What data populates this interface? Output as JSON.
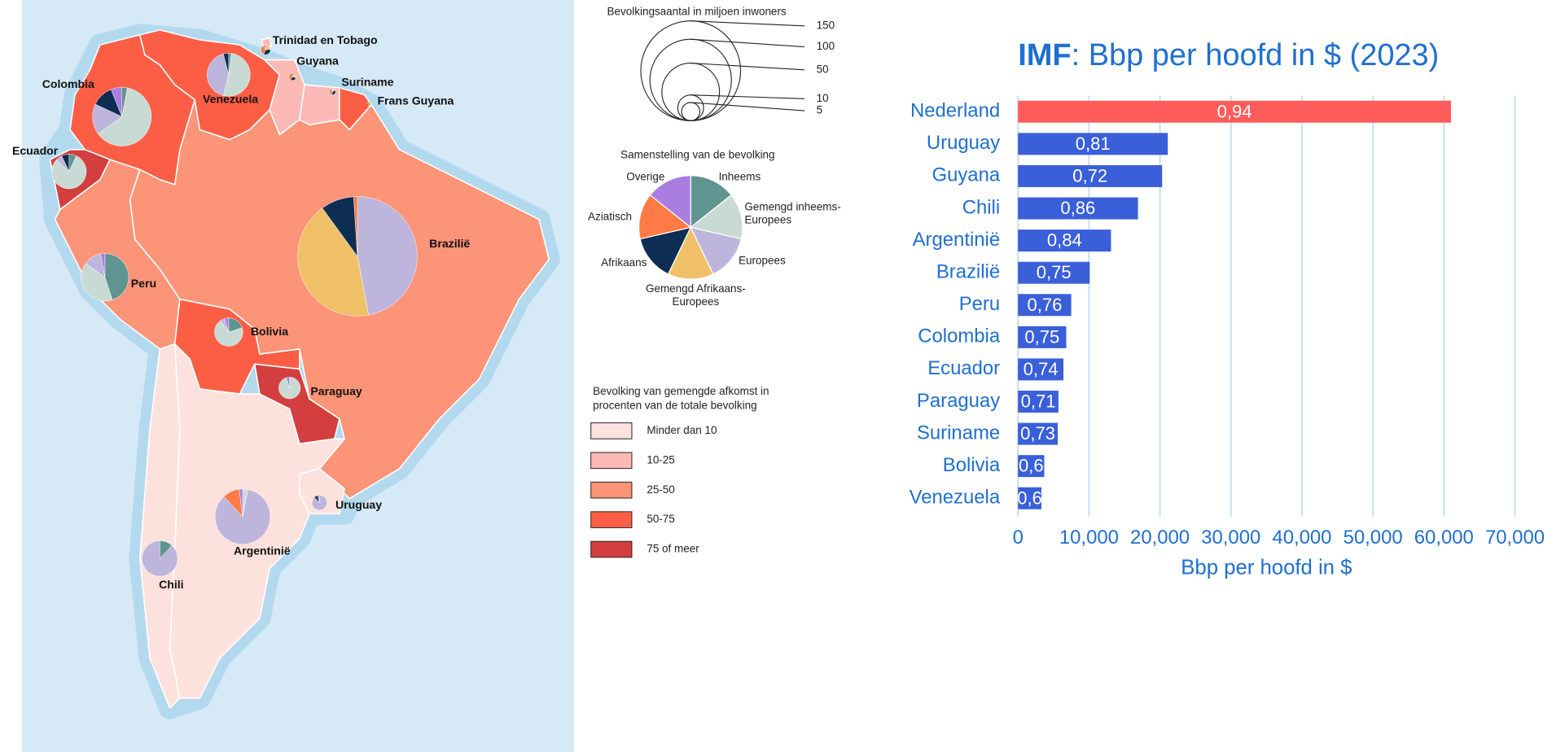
{
  "map": {
    "size_legend": {
      "title": "Bevolkingsaantal in miljoen inwoners",
      "values": [
        150,
        100,
        50,
        10,
        5
      ]
    },
    "composition_legend": {
      "title": "Samenstelling van de bevolking",
      "categories": [
        {
          "lines": [
            "Inheems"
          ],
          "color": "#5f9490"
        },
        {
          "lines": [
            "Gemengd inheems-",
            "Europees"
          ],
          "color": "#c9dad5"
        },
        {
          "lines": [
            "Europees"
          ],
          "color": "#bdb5dc"
        },
        {
          "lines": [
            "Gemengd Afrikaans-",
            "Europees"
          ],
          "color": "#f0c069"
        },
        {
          "lines": [
            "Afrikaans"
          ],
          "color": "#0d2d52"
        },
        {
          "lines": [
            "Aziatisch"
          ],
          "color": "#ff7a45"
        },
        {
          "lines": [
            "Overige"
          ],
          "color": "#a97ee0"
        }
      ]
    },
    "class_legend": {
      "title": [
        "Bevolking van gemengde afkomst in",
        "procenten van de totale bevolking"
      ],
      "classes": [
        {
          "label": "Minder dan 10",
          "color": "#fde1dd"
        },
        {
          "label": "10-25",
          "color": "#fcb9b5"
        },
        {
          "label": "25-50",
          "color": "#fc9478"
        },
        {
          "label": "50-75",
          "color": "#fc5e45"
        },
        {
          "label": "75 of meer",
          "color": "#d33e3e"
        }
      ]
    },
    "countries": [
      {
        "name": "Brazilië",
        "population": 215,
        "class": 2,
        "shares": [
          0,
          0,
          47,
          43,
          9,
          1,
          0
        ]
      },
      {
        "name": "Colombia",
        "population": 52,
        "class": 3,
        "shares": [
          3,
          62,
          17,
          0,
          12,
          0,
          6
        ]
      },
      {
        "name": "Venezuela",
        "population": 28,
        "class": 3,
        "shares": [
          2,
          52,
          42,
          0,
          4,
          0,
          0
        ]
      },
      {
        "name": "Peru",
        "population": 34,
        "class": 2,
        "shares": [
          45,
          40,
          12,
          0,
          0,
          0,
          3
        ]
      },
      {
        "name": "Ecuador",
        "population": 18,
        "class": 4,
        "shares": [
          7,
          80,
          6,
          0,
          7,
          0,
          0
        ]
      },
      {
        "name": "Bolivia",
        "population": 12,
        "class": 3,
        "shares": [
          20,
          70,
          5,
          0,
          0,
          0,
          5
        ]
      },
      {
        "name": "Paraguay",
        "population": 7,
        "class": 4,
        "shares": [
          0,
          95,
          0,
          0,
          0,
          0,
          5
        ]
      },
      {
        "name": "Argentinië",
        "population": 46,
        "class": 0,
        "shares": [
          0,
          3,
          85,
          0,
          0,
          10,
          2
        ]
      },
      {
        "name": "Chili",
        "population": 19,
        "class": 0,
        "shares": [
          12,
          0,
          88,
          0,
          0,
          0,
          0
        ]
      },
      {
        "name": "Uruguay",
        "population": 3.4,
        "class": 0,
        "shares": [
          0,
          0,
          88,
          0,
          8,
          0,
          4
        ]
      },
      {
        "name": "Guyana",
        "population": 0.8,
        "class": 1,
        "shares": [
          10,
          0,
          0,
          20,
          30,
          40,
          0
        ]
      },
      {
        "name": "Suriname",
        "population": 0.6,
        "class": 1,
        "shares": [
          4,
          0,
          0,
          13,
          37,
          37,
          9
        ]
      },
      {
        "name": "Trinidad en Tobago",
        "population": 1.4,
        "class": 1,
        "shares": [
          0,
          0,
          0,
          23,
          34,
          35,
          8
        ]
      },
      {
        "name": "Frans Guyana",
        "population": 0.3,
        "class": 3,
        "shares": [
          0,
          0,
          0,
          60,
          20,
          20,
          0
        ]
      }
    ]
  },
  "chart_data": {
    "type": "bar",
    "orientation": "horizontal",
    "title_bold": "IMF",
    "title": ": Bbp per hoofd in $ (2023)",
    "xlabel": "Bbp per hoofd in $",
    "categories": [
      "Nederland",
      "Uruguay",
      "Guyana",
      "Chili",
      "Argentinië",
      "Brazilië",
      "Peru",
      "Colombia",
      "Ecuador",
      "Paraguay",
      "Suriname",
      "Bolivia",
      "Venezuela"
    ],
    "values": [
      61000,
      21100,
      20300,
      16900,
      13100,
      10100,
      7500,
      6800,
      6400,
      5700,
      5600,
      3700,
      3300
    ],
    "bar_texts": [
      "0,94",
      "0,81",
      "0,72",
      "0,86",
      "0,84",
      "0,75",
      "0,76",
      "0,75",
      "0,74",
      "0,71",
      "0,73",
      "0,6",
      "0,6"
    ],
    "colors": [
      "#ff5c5c",
      "#3a5fd9",
      "#3a5fd9",
      "#3a5fd9",
      "#3a5fd9",
      "#3a5fd9",
      "#3a5fd9",
      "#3a5fd9",
      "#3a5fd9",
      "#3a5fd9",
      "#3a5fd9",
      "#3a5fd9",
      "#3a5fd9"
    ],
    "xlim": [
      0,
      70000
    ],
    "xticks": [
      0,
      {
        "value": 10000,
        "label": "10,000"
      },
      {
        "value": 20000,
        "label": "20,000"
      },
      {
        "value": 30000,
        "label": "30,000"
      },
      {
        "value": 40000,
        "label": "40,000"
      },
      {
        "value": 50000,
        "label": "50,000"
      },
      {
        "value": 60000,
        "label": "60,000"
      },
      {
        "value": 70000,
        "label": "70,000"
      }
    ],
    "grid": true
  }
}
